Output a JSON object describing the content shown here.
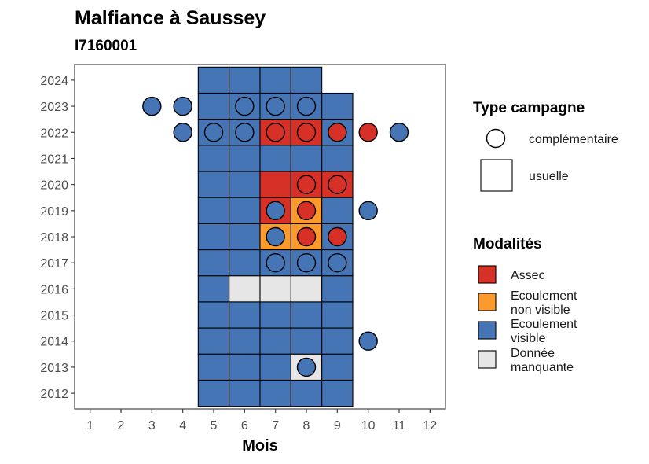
{
  "chart_data": {
    "type": "heatmap",
    "title": "Malfiance à Saussey",
    "subtitle": "I7160001",
    "xlabel": "Mois",
    "ylabel": "",
    "x_ticks": [
      1,
      2,
      3,
      4,
      5,
      6,
      7,
      8,
      9,
      10,
      11,
      12
    ],
    "y_ticks": [
      2012,
      2013,
      2014,
      2015,
      2016,
      2017,
      2018,
      2019,
      2020,
      2021,
      2022,
      2023,
      2024
    ],
    "xlim": [
      0.5,
      12.5
    ],
    "ylim": [
      2011.4,
      2024.6
    ],
    "colors": {
      "Assec": "#d73027",
      "Ecoulement non visible": "#fd9a2b",
      "Ecoulement visible": "#4575b4",
      "Donnée manquante": "#e6e6e6"
    },
    "usuelle": [
      {
        "year": 2024,
        "months": [
          "Ecoulement visible",
          "Ecoulement visible",
          "Ecoulement visible",
          "Ecoulement visible"
        ]
      },
      {
        "year": 2023,
        "months": [
          "Ecoulement visible",
          "Ecoulement visible",
          "Ecoulement visible",
          "Ecoulement visible",
          "Ecoulement visible"
        ]
      },
      {
        "year": 2022,
        "months": [
          "Ecoulement visible",
          "Ecoulement visible",
          "Assec",
          "Assec",
          "Ecoulement visible"
        ]
      },
      {
        "year": 2021,
        "months": [
          "Ecoulement visible",
          "Ecoulement visible",
          "Ecoulement visible",
          "Ecoulement visible",
          "Ecoulement visible"
        ]
      },
      {
        "year": 2020,
        "months": [
          "Ecoulement visible",
          "Ecoulement visible",
          "Assec",
          "Assec",
          "Assec"
        ]
      },
      {
        "year": 2019,
        "months": [
          "Ecoulement visible",
          "Ecoulement visible",
          "Assec",
          "Ecoulement non visible",
          "Ecoulement visible"
        ]
      },
      {
        "year": 2018,
        "months": [
          "Ecoulement visible",
          "Ecoulement visible",
          "Ecoulement non visible",
          "Ecoulement non visible",
          "Ecoulement visible"
        ]
      },
      {
        "year": 2017,
        "months": [
          "Ecoulement visible",
          "Ecoulement visible",
          "Ecoulement visible",
          "Ecoulement visible",
          "Ecoulement visible"
        ]
      },
      {
        "year": 2016,
        "months": [
          "Ecoulement visible",
          "Donnée manquante",
          "Donnée manquante",
          "Donnée manquante",
          "Ecoulement visible"
        ]
      },
      {
        "year": 2015,
        "months": [
          "Ecoulement visible",
          "Ecoulement visible",
          "Ecoulement visible",
          "Ecoulement visible",
          "Ecoulement visible"
        ]
      },
      {
        "year": 2014,
        "months": [
          "Ecoulement visible",
          "Ecoulement visible",
          "Ecoulement visible",
          "Ecoulement visible",
          "Ecoulement visible"
        ]
      },
      {
        "year": 2013,
        "months": [
          "Ecoulement visible",
          "Ecoulement visible",
          "Ecoulement visible",
          "Donnée manquante",
          "Ecoulement visible"
        ]
      },
      {
        "year": 2012,
        "months": [
          "Ecoulement visible",
          "Ecoulement visible",
          "Ecoulement visible",
          "Ecoulement visible",
          "Ecoulement visible"
        ]
      }
    ],
    "usuelle_first_month": 5,
    "complementaire": [
      {
        "year": 2023,
        "month": 3,
        "mod": "Ecoulement visible"
      },
      {
        "year": 2023,
        "month": 4,
        "mod": "Ecoulement visible"
      },
      {
        "year": 2023,
        "month": 6,
        "mod": "Ecoulement visible"
      },
      {
        "year": 2023,
        "month": 7,
        "mod": "Ecoulement visible"
      },
      {
        "year": 2023,
        "month": 8,
        "mod": "Ecoulement visible"
      },
      {
        "year": 2022,
        "month": 4,
        "mod": "Ecoulement visible"
      },
      {
        "year": 2022,
        "month": 5,
        "mod": "Ecoulement visible"
      },
      {
        "year": 2022,
        "month": 6,
        "mod": "Ecoulement visible"
      },
      {
        "year": 2022,
        "month": 7,
        "mod": "Assec"
      },
      {
        "year": 2022,
        "month": 8,
        "mod": "Assec"
      },
      {
        "year": 2022,
        "month": 9,
        "mod": "Assec"
      },
      {
        "year": 2022,
        "month": 10,
        "mod": "Assec"
      },
      {
        "year": 2022,
        "month": 11,
        "mod": "Ecoulement visible"
      },
      {
        "year": 2020,
        "month": 8,
        "mod": "Assec"
      },
      {
        "year": 2020,
        "month": 9,
        "mod": "Assec"
      },
      {
        "year": 2019,
        "month": 7,
        "mod": "Ecoulement visible"
      },
      {
        "year": 2019,
        "month": 8,
        "mod": "Assec"
      },
      {
        "year": 2019,
        "month": 10,
        "mod": "Ecoulement visible"
      },
      {
        "year": 2018,
        "month": 7,
        "mod": "Ecoulement visible"
      },
      {
        "year": 2018,
        "month": 8,
        "mod": "Assec"
      },
      {
        "year": 2018,
        "month": 9,
        "mod": "Assec"
      },
      {
        "year": 2017,
        "month": 7,
        "mod": "Ecoulement visible"
      },
      {
        "year": 2017,
        "month": 8,
        "mod": "Ecoulement visible"
      },
      {
        "year": 2017,
        "month": 9,
        "mod": "Ecoulement visible"
      },
      {
        "year": 2014,
        "month": 10,
        "mod": "Ecoulement visible"
      },
      {
        "year": 2013,
        "month": 8,
        "mod": "Ecoulement visible"
      }
    ],
    "legend_type": {
      "title": "Type campagne",
      "items": [
        "complémentaire",
        "usuelle"
      ]
    },
    "legend_mod": {
      "title": "Modalités",
      "items": [
        {
          "key": "Assec",
          "lines": [
            "Assec"
          ]
        },
        {
          "key": "Ecoulement non visible",
          "lines": [
            "Ecoulement",
            "non visible"
          ]
        },
        {
          "key": "Ecoulement visible",
          "lines": [
            "Ecoulement",
            "visible"
          ]
        },
        {
          "key": "Donnée manquante",
          "lines": [
            "Donnée",
            "manquante"
          ]
        }
      ]
    },
    "grid": false,
    "legend_position": "right"
  }
}
